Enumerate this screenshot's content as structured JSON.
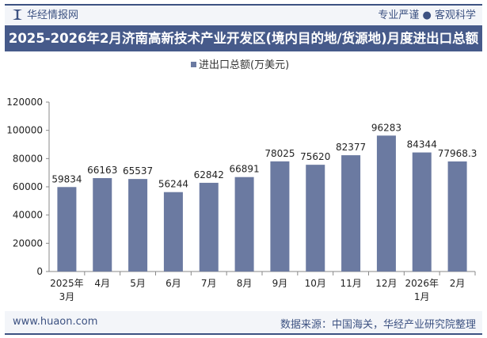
{
  "header": {
    "brand": "华经情报网",
    "slogan": "专业严谨 ● 客观科学",
    "title": "2025-2026年2月济南高新技术产业开发区(境内目的地/货源地)月度进出口总额"
  },
  "footer": {
    "url": "www.huaon.com",
    "source": "数据来源：中国海关，华经产业研究院整理"
  },
  "chart_data": {
    "type": "bar",
    "categories": [
      [
        "2025年",
        "3月"
      ],
      [
        "4月"
      ],
      [
        "5月"
      ],
      [
        "6月"
      ],
      [
        "7月"
      ],
      [
        "8月"
      ],
      [
        "9月"
      ],
      [
        "10月"
      ],
      [
        "11月"
      ],
      [
        "12月"
      ],
      [
        "2026年",
        "1月"
      ],
      [
        "2月"
      ]
    ],
    "series": [
      {
        "name": "进出口总额(万美元)",
        "values": [
          59834,
          66163,
          65537,
          56244,
          62842,
          66891,
          78025,
          75620,
          82377,
          96283,
          84344,
          77968.3
        ],
        "color": "#6b7aa1"
      }
    ],
    "ylim": [
      0,
      120000
    ],
    "yticks": [
      0,
      20000,
      40000,
      60000,
      80000,
      100000,
      120000
    ],
    "legend": "top-center",
    "grid": false
  }
}
